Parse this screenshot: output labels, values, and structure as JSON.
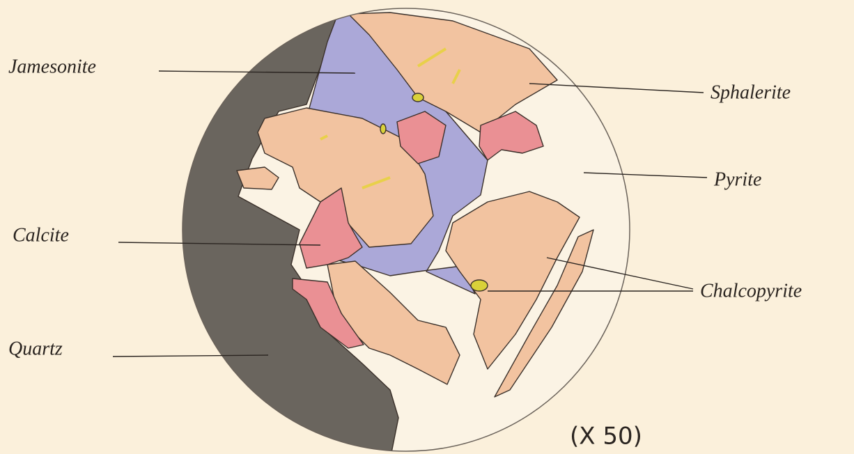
{
  "labels": [
    "Jamesonite",
    "Sphalerite",
    "Pyrite",
    "Calcite",
    "Chalcopyrite",
    "Quartz"
  ],
  "magnification": "(X 50)"
}
